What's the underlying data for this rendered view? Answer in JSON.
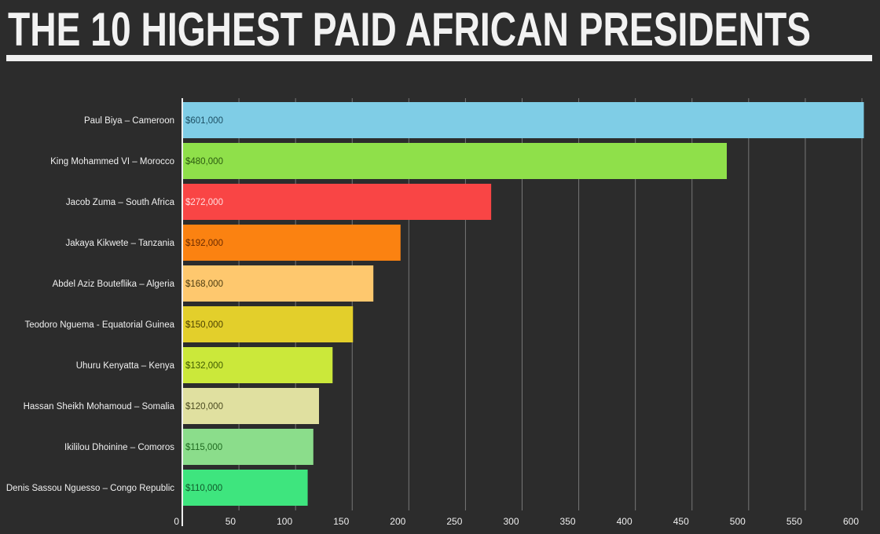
{
  "chart_data": {
    "type": "bar",
    "orientation": "horizontal",
    "title": "THE 10 HIGHEST PAID AFRICAN PRESIDENTS",
    "categories": [
      "Paul Biya – Cameroon",
      "King Mohammed VI – Morocco",
      "Jacob Zuma – South Africa",
      "Jakaya Kikwete – Tanzania",
      "Abdel Aziz Bouteflika – Algeria",
      "Teodoro Nguema - Equatorial Guinea",
      "Uhuru Kenyatta – Kenya",
      "Hassan Sheikh Mohamoud – Somalia",
      "Ikililou Dhoinine – Comoros",
      "Denis Sassou Nguesso – Congo Republic"
    ],
    "values": [
      601,
      480,
      272,
      192,
      168,
      150,
      132,
      120,
      115,
      110
    ],
    "data_labels": [
      "$601,000",
      "$480,000",
      "$272,000",
      "$192,000",
      "$168,000",
      "$150,000",
      "$132,000",
      "$120,000",
      "$115,000",
      "$110,000"
    ],
    "colors": [
      "#7fcde6",
      "#8fe04a",
      "#f94545",
      "#fb8211",
      "#fec86e",
      "#e3cf2b",
      "#cbe83a",
      "#e0e0a0",
      "#8bdd8b",
      "#3ee57e"
    ],
    "label_colors": [
      "#1d4f63",
      "#2b5a10",
      "#ffe0e0",
      "#6a2a00",
      "#4a3a10",
      "#4a4000",
      "#3f5a00",
      "#4a4a20",
      "#1f6a20",
      "#0f5a2a"
    ],
    "xlim": [
      0,
      600
    ],
    "xticks": [
      0,
      50,
      100,
      150,
      200,
      250,
      300,
      350,
      400,
      450,
      500,
      550,
      600
    ],
    "xlabel": "",
    "ylabel": "",
    "grid": true,
    "background": "#2c2c2c"
  }
}
